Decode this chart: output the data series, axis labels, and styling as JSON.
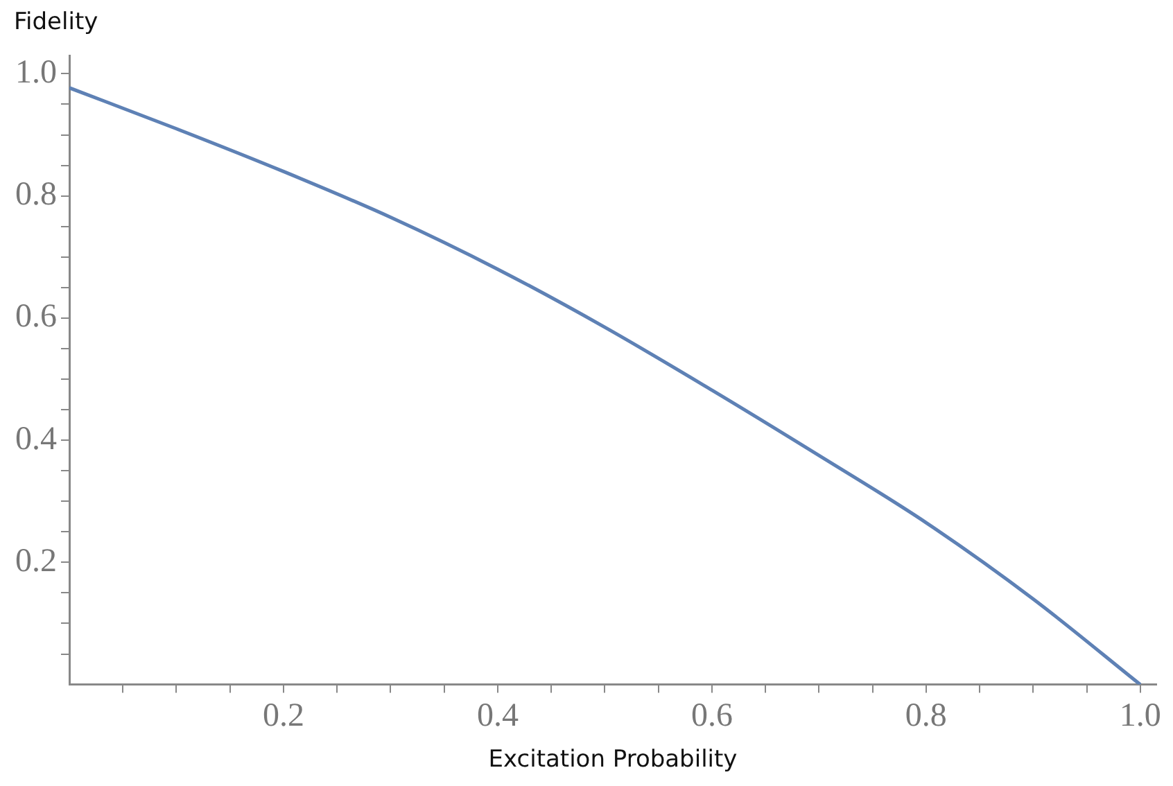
{
  "chart_data": {
    "type": "line",
    "xlabel": "Excitation Probability",
    "ylabel": "Fidelity",
    "x": [
      0,
      0.1,
      0.2,
      0.3,
      0.4,
      0.5,
      0.6,
      0.7,
      0.8,
      0.9,
      1.0
    ],
    "series": [
      {
        "color": "#5e81b5",
        "values": [
          0.977,
          0.91,
          0.84,
          0.765,
          0.68,
          0.585,
          0.482,
          0.375,
          0.265,
          0.14,
          0
        ]
      }
    ],
    "xlim": [
      0,
      1.015
    ],
    "ylim": [
      0,
      1.03
    ],
    "xticks": [
      {
        "value": 0.05,
        "label": null
      },
      {
        "value": 0.1,
        "label": null
      },
      {
        "value": 0.15,
        "label": null
      },
      {
        "value": 0.2,
        "label": "0.2"
      },
      {
        "value": 0.25,
        "label": null
      },
      {
        "value": 0.3,
        "label": null
      },
      {
        "value": 0.35,
        "label": null
      },
      {
        "value": 0.4,
        "label": "0.4"
      },
      {
        "value": 0.45,
        "label": null
      },
      {
        "value": 0.5,
        "label": null
      },
      {
        "value": 0.55,
        "label": null
      },
      {
        "value": 0.6,
        "label": "0.6"
      },
      {
        "value": 0.65,
        "label": null
      },
      {
        "value": 0.7,
        "label": null
      },
      {
        "value": 0.75,
        "label": null
      },
      {
        "value": 0.8,
        "label": "0.8"
      },
      {
        "value": 0.85,
        "label": null
      },
      {
        "value": 0.9,
        "label": null
      },
      {
        "value": 0.95,
        "label": null
      },
      {
        "value": 1.0,
        "label": "1.0"
      }
    ],
    "yticks": [
      {
        "value": 0.05,
        "label": null
      },
      {
        "value": 0.1,
        "label": null
      },
      {
        "value": 0.15,
        "label": null
      },
      {
        "value": 0.2,
        "label": "0.2"
      },
      {
        "value": 0.25,
        "label": null
      },
      {
        "value": 0.3,
        "label": null
      },
      {
        "value": 0.35,
        "label": null
      },
      {
        "value": 0.4,
        "label": "0.4"
      },
      {
        "value": 0.45,
        "label": null
      },
      {
        "value": 0.5,
        "label": null
      },
      {
        "value": 0.55,
        "label": null
      },
      {
        "value": 0.6,
        "label": "0.6"
      },
      {
        "value": 0.65,
        "label": null
      },
      {
        "value": 0.7,
        "label": null
      },
      {
        "value": 0.75,
        "label": null
      },
      {
        "value": 0.8,
        "label": "0.8"
      },
      {
        "value": 0.85,
        "label": null
      },
      {
        "value": 0.9,
        "label": null
      },
      {
        "value": 0.95,
        "label": null
      },
      {
        "value": 1.0,
        "label": "1.0"
      }
    ],
    "grid": false,
    "legend": false,
    "marker": "none",
    "line_style": "solid"
  }
}
